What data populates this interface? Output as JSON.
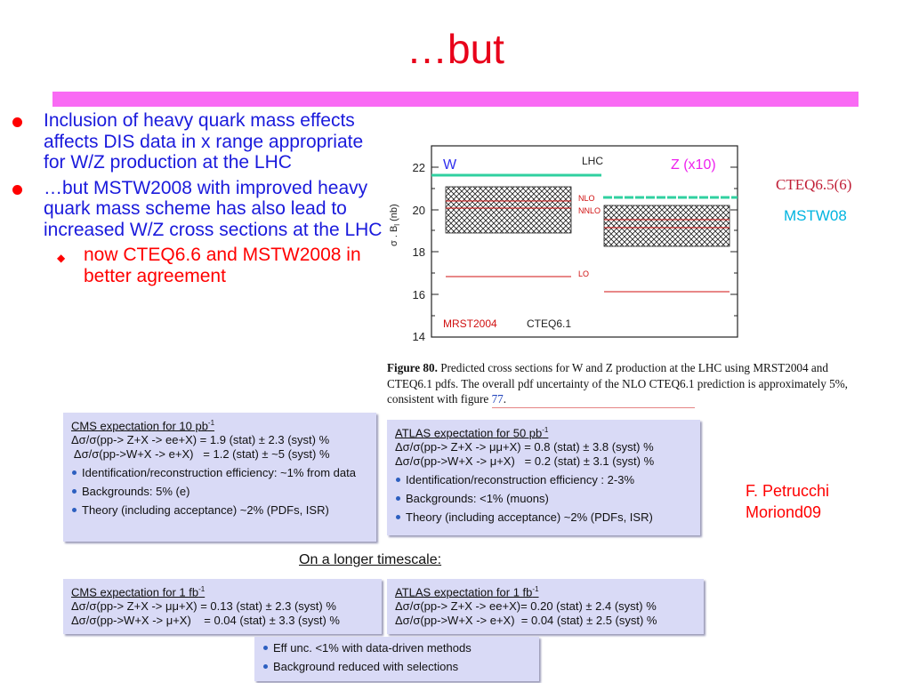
{
  "slide_title": "…but",
  "bullets": [
    {
      "text": "Inclusion of heavy quark mass effects affects DIS data in x range appropriate for W/Z production at the LHC"
    },
    {
      "text": "…but MSTW2008 with improved heavy quark mass scheme has also lead to increased W/Z cross sections at the LHC"
    }
  ],
  "sub_bullet": "now CTEQ6.6 and MSTW2008 in better agreement",
  "colors": {
    "title": "#e8001a",
    "bar": "#f96af4",
    "bullet_text": "#1a1adc",
    "sub_bullet_text": "#ff0000",
    "box": "#d9daf6",
    "cteq_label": "#c01e36",
    "mstw_label": "#00b4e0"
  },
  "plot": {
    "w_label": "W",
    "lhc_label": "LHC",
    "z_label": "Z (x10)",
    "y_axis_label": "σ . B",
    "y_axis_subscript": "l",
    "y_axis_unit": "(nb)",
    "y_ticks": [
      "22",
      "20",
      "18",
      "16",
      "14"
    ],
    "nlo_label": "NLO",
    "nnlo_label": "NNLO",
    "lo_label": "LO",
    "mrst_label": "MRST2004",
    "cteq_label": "CTEQ6.1"
  },
  "figure_caption": {
    "prefix": "Figure 80.",
    "line1": "Predicted cross sections for W and Z production at the LHC using MRST2004 and",
    "line2": "CTEQ6.1 pdfs. The overall pdf uncertainty of the NLO CTEQ6.1 prediction is approximately 5%,",
    "line3_text": "consistent with figure",
    "line3_ref": "77",
    "line3_end": "."
  },
  "labels": {
    "cteq": "CTEQ6.5(6)",
    "mstw": "MSTW08"
  },
  "cms_10pb": {
    "header": "CMS expectation for 10 pb",
    "header_sup": "-1",
    "line1": "Δσ/σ(pp-> Z+X -> ee+X) = 1.9 (stat) ± 2.3 (syst) %",
    "line2": " Δσ/σ(pp->W+X -> e+X)   = 1.2 (stat) ± ~5 (syst) %",
    "items": [
      "Identification/reconstruction efficiency: ~1% from data",
      "Backgrounds: 5% (e)",
      "Theory (including acceptance) ~2% (PDFs, ISR)"
    ]
  },
  "atlas_50pb": {
    "header": "ATLAS expectation for 50 pb",
    "header_sup": "-1",
    "line1": "Δσ/σ(pp-> Z+X -> μμ+X) = 0.8 (stat) ± 3.8 (syst) %",
    "line2": "Δσ/σ(pp->W+X -> μ+X)   = 0.2 (stat) ± 3.1 (syst) %",
    "items": [
      "Identification/reconstruction efficiency : 2-3%",
      "Backgrounds: <1% (muons)",
      "Theory (including acceptance) ~2% (PDFs, ISR)"
    ]
  },
  "author": {
    "name": "F. Petrucchi",
    "venue": "Moriond09"
  },
  "longer_timescale": "On a longer timescale:",
  "cms_1fb": {
    "header": "CMS expectation for 1 fb",
    "header_sup": "-1",
    "line1": "Δσ/σ(pp-> Z+X -> μμ+X) = 0.13 (stat) ± 2.3 (syst) %",
    "line2": "Δσ/σ(pp->W+X -> μ+X)    = 0.04 (stat) ± 3.3 (syst) %"
  },
  "atlas_1fb": {
    "header": "ATLAS expectation for 1 fb",
    "header_sup": "-1",
    "line1": "Δσ/σ(pp-> Z+X -> ee+X)= 0.20 (stat) ± 2.4 (syst) %",
    "line2": "Δσ/σ(pp->W+X -> e+X)  = 0.04 (stat) ± 2.5 (syst) %"
  },
  "bottom_box": {
    "items": [
      "Eff unc. <1% with data-driven methods",
      "Background reduced with selections"
    ]
  }
}
